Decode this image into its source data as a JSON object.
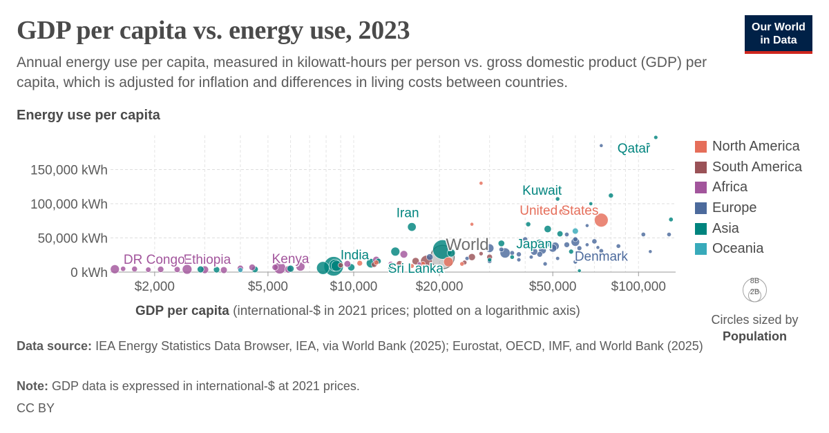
{
  "title": "GDP per capita vs. energy use, 2023",
  "subtitle": "Annual energy use per capita, measured in kilowatt-hours per person vs. gross domestic product (GDP) per capita, which is adjusted for inflation and differences in living costs between countries.",
  "logo": {
    "line1": "Our World",
    "line2": "in Data"
  },
  "y_axis_title": "Energy use per capita",
  "x_axis_title": {
    "bold": "GDP per capita",
    "rest": "(international-$ in 2021 prices; plotted on a logarithmic axis)"
  },
  "size_legend": {
    "big": "8B",
    "small": "2B",
    "caption": "Circles sized by",
    "variable": "Population"
  },
  "footer": {
    "source_label": "Data source:",
    "source_text": "IEA Energy Statistics Data Browser, IEA, via World Bank (2025); Eurostat, OECD, IMF, and World Bank (2025)",
    "note_label": "Note:",
    "note_text": "GDP data is expressed in international-$ at 2021 prices.",
    "license": "CC BY"
  },
  "colors": {
    "North America": "#e56e5a",
    "South America": "#9a5257",
    "Africa": "#a2559c",
    "Europe": "#4c6a9c",
    "Asia": "#00847e",
    "Oceania": "#38aaba",
    "World": "#6e6e6e"
  },
  "chart_data": {
    "type": "scatter",
    "x_scale": "log",
    "x_range": [
      1400,
      135000
    ],
    "y_range": [
      0,
      200000
    ],
    "x_ticks": [
      {
        "v": 2000,
        "label": "$2,000"
      },
      {
        "v": 5000,
        "label": "$5,000"
      },
      {
        "v": 10000,
        "label": "$10,000"
      },
      {
        "v": 20000,
        "label": "$20,000"
      },
      {
        "v": 50000,
        "label": "$50,000"
      },
      {
        "v": 100000,
        "label": "$100,000"
      }
    ],
    "y_ticks": [
      {
        "v": 0,
        "label": "0 kWh"
      },
      {
        "v": 50000,
        "label": "50,000 kWh"
      },
      {
        "v": 100000,
        "label": "100,000 kWh"
      },
      {
        "v": 150000,
        "label": "150,000 kWh"
      }
    ],
    "legend": [
      "North America",
      "South America",
      "Africa",
      "Europe",
      "Asia",
      "Oceania"
    ],
    "labeled_points": [
      {
        "name": "Qatar",
        "region": "Asia",
        "x": 115000,
        "y": 197000,
        "pop": 2.7
      },
      {
        "name": "Kuwait",
        "region": "Asia",
        "x": 52000,
        "y": 107000,
        "pop": 4.3
      },
      {
        "name": "United States",
        "region": "North America",
        "x": 74000,
        "y": 76000,
        "pop": 335
      },
      {
        "name": "Iran",
        "region": "Asia",
        "x": 16000,
        "y": 66000,
        "pop": 89
      },
      {
        "name": "Japan",
        "region": "Asia",
        "x": 45000,
        "y": 41000,
        "pop": 124
      },
      {
        "name": "Denmark",
        "region": "Europe",
        "x": 74000,
        "y": 31000,
        "pop": 6
      },
      {
        "name": "World",
        "region": "World",
        "x": 20500,
        "y": 22000,
        "pop": 8000
      },
      {
        "name": "India",
        "region": "Asia",
        "x": 8500,
        "y": 8500,
        "pop": 1430
      },
      {
        "name": "Sri Lanka",
        "region": "Asia",
        "x": 13500,
        "y": 7000,
        "pop": 22
      },
      {
        "name": "Kenya",
        "region": "Africa",
        "x": 5900,
        "y": 4000,
        "pop": 55
      },
      {
        "name": "Ethiopia",
        "region": "Africa",
        "x": 2600,
        "y": 4000,
        "pop": 126
      },
      {
        "name": "DR Congo",
        "region": "Africa",
        "x": 1450,
        "y": 4200,
        "pop": 102
      }
    ],
    "points": [
      {
        "region": "Asia",
        "x": 20500,
        "y": 33000,
        "pop": 1410
      },
      {
        "region": "Asia",
        "x": 7800,
        "y": 6000,
        "pop": 277
      },
      {
        "region": "Asia",
        "x": 8600,
        "y": 10000,
        "pop": 240
      },
      {
        "region": "Asia",
        "x": 8700,
        "y": 9000,
        "pop": 173
      },
      {
        "region": "Asia",
        "x": 14000,
        "y": 30000,
        "pop": 100
      },
      {
        "region": "Asia",
        "x": 11500,
        "y": 13000,
        "pop": 115
      },
      {
        "region": "Asia",
        "x": 22000,
        "y": 28000,
        "pop": 71
      },
      {
        "region": "Asia",
        "x": 33000,
        "y": 42000,
        "pop": 34
      },
      {
        "region": "Asia",
        "x": 48000,
        "y": 63000,
        "pop": 51
      },
      {
        "region": "Asia",
        "x": 53000,
        "y": 56000,
        "pop": 24
      },
      {
        "region": "Asia",
        "x": 41000,
        "y": 70000,
        "pop": 10
      },
      {
        "region": "Asia",
        "x": 108000,
        "y": 186000,
        "pop": 7
      },
      {
        "region": "Asia",
        "x": 68000,
        "y": 100000,
        "pop": 1.5
      },
      {
        "region": "Asia",
        "x": 80000,
        "y": 112000,
        "pop": 10
      },
      {
        "region": "Asia",
        "x": 130000,
        "y": 77000,
        "pop": 6
      },
      {
        "region": "Asia",
        "x": 62000,
        "y": 2000,
        "pop": 0.5
      },
      {
        "region": "Asia",
        "x": 12200,
        "y": 16000,
        "pop": 20
      },
      {
        "region": "Asia",
        "x": 4500,
        "y": 4000,
        "pop": 34
      },
      {
        "region": "Asia",
        "x": 6000,
        "y": 5000,
        "pop": 45
      },
      {
        "region": "Asia",
        "x": 9800,
        "y": 7000,
        "pop": 50
      },
      {
        "region": "Asia",
        "x": 3300,
        "y": 3500,
        "pop": 30
      },
      {
        "region": "Asia",
        "x": 2900,
        "y": 4000,
        "pop": 40
      },
      {
        "region": "Asia",
        "x": 36000,
        "y": 22000,
        "pop": 5
      },
      {
        "region": "Asia",
        "x": 30000,
        "y": 18000,
        "pop": 4
      },
      {
        "region": "Asia",
        "x": 58000,
        "y": 30000,
        "pop": 9
      },
      {
        "region": "North America",
        "x": 28000,
        "y": 130000,
        "pop": 1.4
      },
      {
        "region": "North America",
        "x": 54000,
        "y": 88000,
        "pop": 39
      },
      {
        "region": "North America",
        "x": 21500,
        "y": 15000,
        "pop": 128
      },
      {
        "region": "North America",
        "x": 26000,
        "y": 70000,
        "pop": 0.4
      },
      {
        "region": "North America",
        "x": 17500,
        "y": 12000,
        "pop": 11
      },
      {
        "region": "North America",
        "x": 10500,
        "y": 13000,
        "pop": 18
      },
      {
        "region": "North America",
        "x": 12000,
        "y": 14000,
        "pop": 11
      },
      {
        "region": "North America",
        "x": 16000,
        "y": 9000,
        "pop": 7
      },
      {
        "region": "North America",
        "x": 24000,
        "y": 12000,
        "pop": 5
      },
      {
        "region": "South America",
        "x": 18000,
        "y": 16000,
        "pop": 216
      },
      {
        "region": "South America",
        "x": 26000,
        "y": 22000,
        "pop": 46
      },
      {
        "region": "South America",
        "x": 30000,
        "y": 22000,
        "pop": 20
      },
      {
        "region": "South America",
        "x": 16500,
        "y": 16000,
        "pop": 52
      },
      {
        "region": "South America",
        "x": 14500,
        "y": 12000,
        "pop": 34
      },
      {
        "region": "South America",
        "x": 9000,
        "y": 10000,
        "pop": 12
      },
      {
        "region": "South America",
        "x": 11800,
        "y": 11000,
        "pop": 18
      },
      {
        "region": "South America",
        "x": 28000,
        "y": 27000,
        "pop": 3.4
      },
      {
        "region": "South America",
        "x": 24500,
        "y": 14000,
        "pop": 7
      },
      {
        "region": "Africa",
        "x": 1700,
        "y": 4500,
        "pop": 20
      },
      {
        "region": "Africa",
        "x": 2100,
        "y": 4000,
        "pop": 30
      },
      {
        "region": "Africa",
        "x": 3000,
        "y": 3500,
        "pop": 60
      },
      {
        "region": "Africa",
        "x": 3500,
        "y": 3000,
        "pop": 40
      },
      {
        "region": "Africa",
        "x": 4400,
        "y": 7000,
        "pop": 32
      },
      {
        "region": "Africa",
        "x": 4000,
        "y": 5500,
        "pop": 28
      },
      {
        "region": "Africa",
        "x": 5500,
        "y": 6000,
        "pop": 224
      },
      {
        "region": "Africa",
        "x": 5300,
        "y": 7000,
        "pop": 30
      },
      {
        "region": "Africa",
        "x": 6500,
        "y": 8000,
        "pop": 100
      },
      {
        "region": "Africa",
        "x": 12000,
        "y": 18000,
        "pop": 45
      },
      {
        "region": "Africa",
        "x": 15000,
        "y": 26000,
        "pop": 60
      },
      {
        "region": "Africa",
        "x": 13500,
        "y": 12000,
        "pop": 12
      },
      {
        "region": "Africa",
        "x": 9500,
        "y": 12000,
        "pop": 37
      },
      {
        "region": "Africa",
        "x": 17000,
        "y": 12000,
        "pop": 2.6
      },
      {
        "region": "Africa",
        "x": 1900,
        "y": 3500,
        "pop": 15
      },
      {
        "region": "Africa",
        "x": 2400,
        "y": 3800,
        "pop": 25
      },
      {
        "region": "Africa",
        "x": 1550,
        "y": 4800,
        "pop": 12
      },
      {
        "region": "Europe",
        "x": 74000,
        "y": 185000,
        "pop": 0.4
      },
      {
        "region": "Europe",
        "x": 104000,
        "y": 55000,
        "pop": 5.5
      },
      {
        "region": "Europe",
        "x": 128000,
        "y": 55000,
        "pop": 5.0
      },
      {
        "region": "Europe",
        "x": 66000,
        "y": 68000,
        "pop": 0.6
      },
      {
        "region": "Europe",
        "x": 60000,
        "y": 48000,
        "pop": 10
      },
      {
        "region": "Europe",
        "x": 56000,
        "y": 40000,
        "pop": 18
      },
      {
        "region": "Europe",
        "x": 60000,
        "y": 44000,
        "pop": 84
      },
      {
        "region": "Europe",
        "x": 51000,
        "y": 38000,
        "pop": 68
      },
      {
        "region": "Europe",
        "x": 50000,
        "y": 35000,
        "pop": 68
      },
      {
        "region": "Europe",
        "x": 46000,
        "y": 32000,
        "pop": 59
      },
      {
        "region": "Europe",
        "x": 43000,
        "y": 30000,
        "pop": 48
      },
      {
        "region": "Europe",
        "x": 40000,
        "y": 38000,
        "pop": 37
      },
      {
        "region": "Europe",
        "x": 38000,
        "y": 26000,
        "pop": 10
      },
      {
        "region": "Europe",
        "x": 45000,
        "y": 26000,
        "pop": 19
      },
      {
        "region": "Europe",
        "x": 62000,
        "y": 35000,
        "pop": 9
      },
      {
        "region": "Europe",
        "x": 70000,
        "y": 45000,
        "pop": 12
      },
      {
        "region": "Europe",
        "x": 85000,
        "y": 38000,
        "pop": 5.3
      },
      {
        "region": "Europe",
        "x": 56000,
        "y": 55000,
        "pop": 5.5
      },
      {
        "region": "Europe",
        "x": 40000,
        "y": 48000,
        "pop": 10
      },
      {
        "region": "Europe",
        "x": 36000,
        "y": 28000,
        "pop": 6.5
      },
      {
        "region": "Europe",
        "x": 33000,
        "y": 33000,
        "pop": 8
      },
      {
        "region": "Europe",
        "x": 34000,
        "y": 28000,
        "pop": 145
      },
      {
        "region": "Europe",
        "x": 30000,
        "y": 35000,
        "pop": 86
      },
      {
        "region": "Europe",
        "x": 42000,
        "y": 22000,
        "pop": 2.1
      },
      {
        "region": "Europe",
        "x": 25000,
        "y": 20000,
        "pop": 2.8
      },
      {
        "region": "Europe",
        "x": 18500,
        "y": 22000,
        "pop": 37
      },
      {
        "region": "Europe",
        "x": 52000,
        "y": 20000,
        "pop": 2
      },
      {
        "region": "Europe",
        "x": 60000,
        "y": 15000,
        "pop": 4
      },
      {
        "region": "Europe",
        "x": 47000,
        "y": 12000,
        "pop": 3.5
      },
      {
        "region": "Europe",
        "x": 110000,
        "y": 30000,
        "pop": 0.6
      },
      {
        "region": "Europe",
        "x": 72000,
        "y": 36000,
        "pop": 0.7
      },
      {
        "region": "Europe",
        "x": 66000,
        "y": 40000,
        "pop": 1.3
      },
      {
        "region": "Europe",
        "x": 38000,
        "y": 18000,
        "pop": 3
      },
      {
        "region": "Europe",
        "x": 30000,
        "y": 16000,
        "pop": 6
      },
      {
        "region": "Oceania",
        "x": 60000,
        "y": 60000,
        "pop": 27
      },
      {
        "region": "Oceania",
        "x": 48000,
        "y": 40000,
        "pop": 5.2
      },
      {
        "region": "Oceania",
        "x": 4000,
        "y": 3000,
        "pop": 10
      }
    ]
  }
}
